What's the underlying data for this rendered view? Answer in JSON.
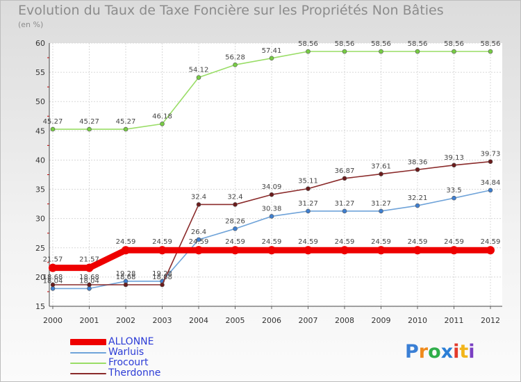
{
  "header": {
    "title": "Evolution du Taux de Taxe Foncière sur les Propriétés Non Bâties",
    "subtitle": "(en %)"
  },
  "logo": {
    "text": "Proxiti",
    "letter_colors": [
      "#3a7fd5",
      "#ef8a1c",
      "#2fae4a",
      "#2b7fd6",
      "#e33b2b",
      "#f2b51b",
      "#7a3fc2"
    ]
  },
  "chart_data": {
    "type": "line",
    "title": "Evolution du Taux de Taxe Foncière sur les Propriétés Non Bâties",
    "ylabel": "(en %)",
    "xlabel": "",
    "ylim": [
      15,
      60
    ],
    "yticks": [
      15,
      20,
      25,
      30,
      35,
      40,
      45,
      50,
      55,
      60
    ],
    "grid": true,
    "legend_position": "bottom-left",
    "categories": [
      "2000",
      "2001",
      "2002",
      "2003",
      "2004",
      "2005",
      "2006",
      "2007",
      "2008",
      "2009",
      "2010",
      "2011",
      "2012"
    ],
    "series": [
      {
        "name": "ALLONNE",
        "color": "#ee0000",
        "thick": true,
        "values": [
          21.57,
          21.57,
          24.59,
          24.59,
          24.59,
          24.59,
          24.59,
          24.59,
          24.59,
          24.59,
          24.59,
          24.59,
          24.59
        ],
        "labels": [
          "21.57",
          "21.57",
          "24.59",
          "24.59",
          "24.59",
          "24.59",
          "24.59",
          "24.59",
          "24.59",
          "24.59",
          "24.59",
          "24.59",
          "24.59"
        ]
      },
      {
        "name": "Warluis",
        "color": "#6fa3d9",
        "point_color": "#3f7fd0",
        "thick": false,
        "values": [
          18.04,
          18.04,
          19.28,
          19.28,
          26.4,
          28.26,
          30.38,
          31.27,
          31.27,
          31.27,
          32.21,
          33.5,
          34.84
        ],
        "labels": [
          "18.04",
          "18.04",
          "19.28",
          "19.28",
          "26.4",
          "28.26",
          "30.38",
          "31.27",
          "31.27",
          "31.27",
          "32.21",
          "33.5",
          "34.84"
        ]
      },
      {
        "name": "Frocourt",
        "color": "#99dd66",
        "point_color": "#77cc44",
        "thick": false,
        "values": [
          45.27,
          45.27,
          45.27,
          46.18,
          54.12,
          56.28,
          57.41,
          58.56,
          58.56,
          58.56,
          58.56,
          58.56,
          58.56
        ],
        "labels": [
          "45.27",
          "45.27",
          "45.27",
          "46.18",
          "54.12",
          "56.28",
          "57.41",
          "58.56",
          "58.56",
          "58.56",
          "58.56",
          "58.56",
          "58.56"
        ]
      },
      {
        "name": "Therdonne",
        "color": "#8a2a2a",
        "point_color": "#6b1c1c",
        "thick": false,
        "values": [
          18.68,
          18.68,
          18.68,
          18.68,
          32.4,
          32.4,
          34.09,
          35.11,
          36.87,
          37.61,
          38.36,
          39.13,
          39.73
        ],
        "labels": [
          "18.68",
          "18.68",
          "18.68",
          "18.68",
          "32.4",
          "32.4",
          "34.09",
          "35.11",
          "36.87",
          "37.61",
          "38.36",
          "39.13",
          "39.73"
        ]
      }
    ]
  }
}
